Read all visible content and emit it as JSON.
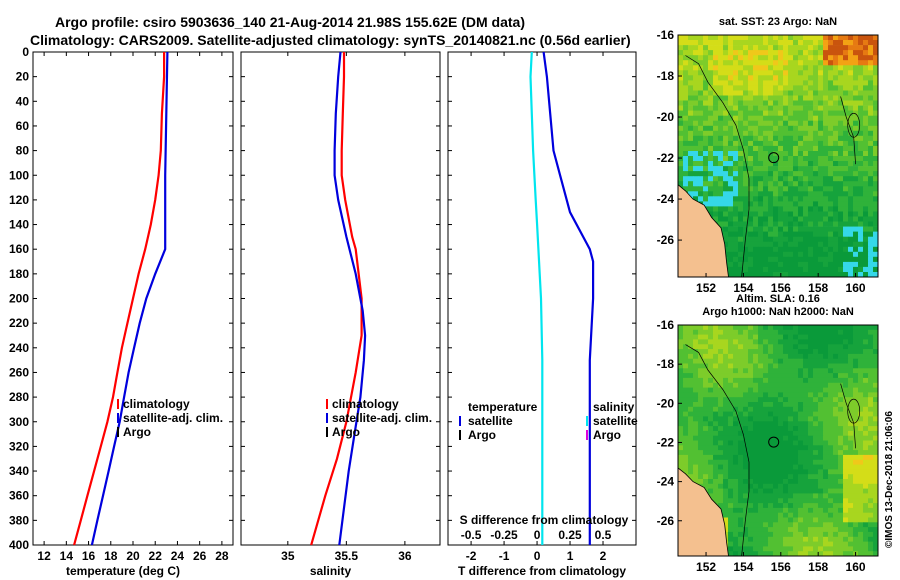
{
  "title": {
    "line1": "Argo profile: csiro 5903636_140 21-Aug-2014 21.98S 155.62E (DM data)",
    "line2": "Climatology: CARS2009. Satellite-adjusted climatology: synTS_20140821.nc (0.56d earlier)"
  },
  "colors": {
    "climatology": "#ff0000",
    "satellite": "#0000dd",
    "argo": "#000000",
    "s_satellite": "#00e5ee",
    "s_argo": "#dd00dd"
  },
  "credit": "©IMOS 13-Dec-2018 21:06:06",
  "chart_data": [
    {
      "id": "temperature",
      "type": "line",
      "xlabel": "temperature (deg C)",
      "ylabel": "",
      "xlim": [
        11,
        29
      ],
      "ylim": [
        400,
        0
      ],
      "xticks": [
        12,
        14,
        16,
        18,
        20,
        22,
        24,
        26,
        28
      ],
      "yticks": [
        0,
        20,
        40,
        60,
        80,
        100,
        120,
        140,
        160,
        180,
        200,
        220,
        240,
        260,
        280,
        300,
        320,
        340,
        360,
        380,
        400
      ],
      "legend": [
        "climatology",
        "satellite-adj. clim.",
        "Argo"
      ],
      "legend_position": "middle-right",
      "series": [
        {
          "name": "climatology",
          "color": "#ff0000",
          "depth": [
            0,
            20,
            50,
            80,
            100,
            120,
            140,
            160,
            180,
            200,
            220,
            240,
            260,
            280,
            300,
            320,
            340,
            360,
            380,
            400
          ],
          "values": [
            22.8,
            22.8,
            22.6,
            22.5,
            22.3,
            22.0,
            21.6,
            21.1,
            20.5,
            20.0,
            19.5,
            19.0,
            18.6,
            18.2,
            17.7,
            17.1,
            16.5,
            15.9,
            15.3,
            14.7
          ]
        },
        {
          "name": "satellite-adj. clim.",
          "color": "#0000dd",
          "depth": [
            0,
            50,
            100,
            140,
            160,
            180,
            200,
            220,
            240,
            260,
            280,
            300,
            320,
            340,
            360,
            380,
            400
          ],
          "values": [
            23.1,
            23.0,
            22.9,
            22.9,
            22.9,
            22.0,
            21.2,
            20.6,
            20.1,
            19.6,
            19.2,
            18.8,
            18.3,
            17.8,
            17.3,
            16.8,
            16.3
          ]
        }
      ]
    },
    {
      "id": "salinity",
      "type": "line",
      "xlabel": "salinity",
      "ylabel": "",
      "xlim": [
        34.6,
        36.3
      ],
      "ylim": [
        400,
        0
      ],
      "xticks": [
        35,
        35.5,
        36
      ],
      "legend": [
        "climatology",
        "satellite-adj. clim.",
        "Argo"
      ],
      "legend_position": "middle-right",
      "series": [
        {
          "name": "climatology",
          "color": "#ff0000",
          "depth": [
            0,
            20,
            50,
            80,
            100,
            120,
            150,
            160,
            200,
            230,
            260,
            300,
            330,
            360,
            400
          ],
          "values": [
            35.48,
            35.48,
            35.47,
            35.46,
            35.46,
            35.49,
            35.55,
            35.58,
            35.63,
            35.63,
            35.58,
            35.5,
            35.42,
            35.32,
            35.2
          ]
        },
        {
          "name": "satellite-adj. clim.",
          "color": "#0000dd",
          "depth": [
            0,
            20,
            50,
            80,
            100,
            120,
            150,
            180,
            210,
            230,
            250,
            280,
            310,
            340,
            370,
            400
          ],
          "values": [
            35.45,
            35.43,
            35.41,
            35.4,
            35.4,
            35.43,
            35.5,
            35.58,
            35.64,
            35.66,
            35.65,
            35.62,
            35.57,
            35.52,
            35.48,
            35.44
          ]
        }
      ]
    },
    {
      "id": "difference",
      "type": "line",
      "xlabel": "T difference from climatology",
      "top_xlabel": "S difference from climatology",
      "xlim": [
        -2.7,
        3.0
      ],
      "xticks": [
        -2,
        -1,
        0,
        1,
        2
      ],
      "top_xticks": [
        -0.5,
        -0.25,
        0,
        0.25,
        0.5
      ],
      "top_xlim": [
        -0.675,
        0.75
      ],
      "ylim": [
        400,
        0
      ],
      "legend_left": {
        "header": "temperature",
        "items": [
          "satellite",
          "Argo"
        ]
      },
      "legend_right": {
        "header": "salinity",
        "items": [
          "satellite",
          "Argo"
        ]
      },
      "series": [
        {
          "name": "T satellite",
          "color": "#0000dd",
          "depth": [
            0,
            20,
            50,
            80,
            100,
            130,
            155,
            160,
            170,
            200,
            250,
            300,
            350,
            400
          ],
          "values": [
            0.2,
            0.3,
            0.4,
            0.5,
            0.7,
            1.0,
            1.5,
            1.6,
            1.7,
            1.7,
            1.6,
            1.6,
            1.6,
            1.6
          ]
        },
        {
          "name": "S satellite",
          "color": "#00e5ee",
          "depth": [
            0,
            20,
            50,
            80,
            100,
            120,
            140,
            160,
            180,
            200,
            250,
            300,
            350,
            400
          ],
          "values": [
            -0.04,
            -0.05,
            -0.04,
            -0.03,
            -0.02,
            -0.01,
            0.0,
            0.01,
            0.02,
            0.03,
            0.04,
            0.04,
            0.04,
            0.04
          ]
        }
      ]
    }
  ],
  "maps": [
    {
      "id": "sst",
      "title_lines": [
        "sat. SST: 23 Argo: NaN"
      ],
      "xticks": [
        "152",
        "154",
        "156",
        "158",
        "160"
      ],
      "yticks": [
        "-16",
        "-18",
        "-20",
        "-22",
        "-24",
        "-26"
      ],
      "lon": [
        150.5,
        161.2
      ],
      "lat": [
        -16,
        -27.8
      ],
      "profile": [
        155.62,
        -21.98
      ]
    },
    {
      "id": "sla",
      "title_lines": [
        "Altim. SLA: 0.16",
        "Argo h1000: NaN h2000: NaN"
      ],
      "xticks": [
        "152",
        "154",
        "156",
        "158",
        "160"
      ],
      "yticks": [
        "-16",
        "-18",
        "-20",
        "-22",
        "-24",
        "-26"
      ],
      "lon": [
        150.5,
        161.2
      ],
      "lat": [
        -16,
        -27.8
      ],
      "profile": [
        155.62,
        -21.98
      ]
    }
  ]
}
